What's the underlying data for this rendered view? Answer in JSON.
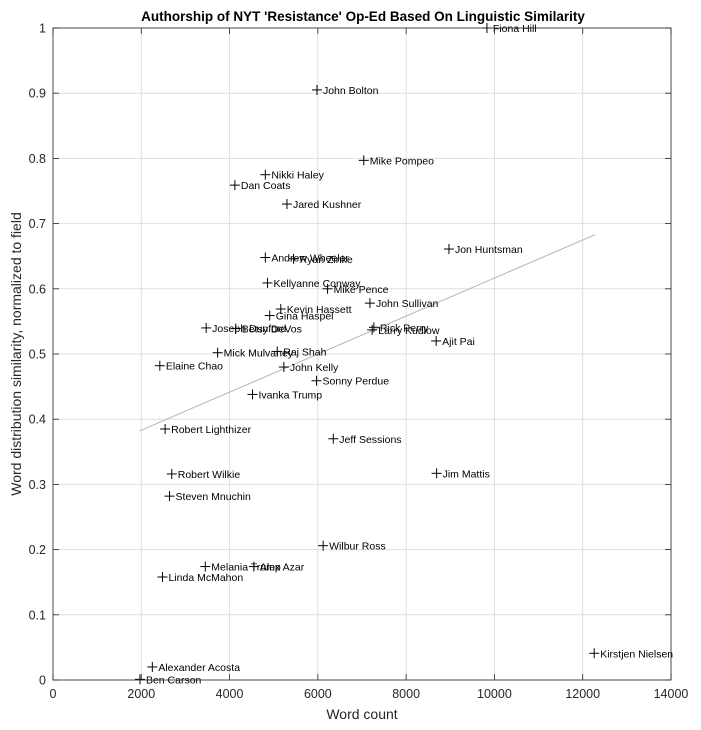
{
  "chart_data": {
    "type": "scatter",
    "title": "Authorship of NYT 'Resistance' Op-Ed Based On Linguistic Similarity",
    "xlabel": "Word count",
    "ylabel": "Word distribution similarity, normalized to field",
    "xlim": [
      0,
      14000
    ],
    "ylim": [
      0,
      1
    ],
    "xticks": [
      0,
      2000,
      4000,
      6000,
      8000,
      10000,
      12000,
      14000
    ],
    "xtick_labels": [
      "0",
      "2000",
      "4000",
      "6000",
      "8000",
      "10000",
      "12000",
      "14000"
    ],
    "yticks": [
      0,
      0.1,
      0.2,
      0.3,
      0.4,
      0.5,
      0.6,
      0.7,
      0.8,
      0.9,
      1
    ],
    "ytick_labels": [
      "0",
      "0.1",
      "0.2",
      "0.3",
      "0.4",
      "0.5",
      "0.6",
      "0.7",
      "0.8",
      "0.9",
      "1"
    ],
    "grid": true,
    "points": [
      {
        "label": "Fiona Hill",
        "x": 9830,
        "y": 1.0
      },
      {
        "label": "John Bolton",
        "x": 5980,
        "y": 0.905
      },
      {
        "label": "Mike Pompeo",
        "x": 7040,
        "y": 0.797
      },
      {
        "label": "Nikki Haley",
        "x": 4810,
        "y": 0.775
      },
      {
        "label": "Dan Coats",
        "x": 4120,
        "y": 0.759
      },
      {
        "label": "Jared Kushner",
        "x": 5300,
        "y": 0.73
      },
      {
        "label": "Jon Huntsman",
        "x": 8970,
        "y": 0.661
      },
      {
        "label": "Andrew Wheeler",
        "x": 4810,
        "y": 0.648
      },
      {
        "label": "Ryan Zinke",
        "x": 5450,
        "y": 0.646
      },
      {
        "label": "Kellyanne Conway",
        "x": 4860,
        "y": 0.609
      },
      {
        "label": "Mike Pence",
        "x": 6220,
        "y": 0.6
      },
      {
        "label": "John Sullivan",
        "x": 7180,
        "y": 0.578
      },
      {
        "label": "Kevin Hassett",
        "x": 5160,
        "y": 0.569
      },
      {
        "label": "Gina Haspel",
        "x": 4910,
        "y": 0.559
      },
      {
        "label": "Joseph Dunford",
        "x": 3470,
        "y": 0.54
      },
      {
        "label": "Betsy DeVos",
        "x": 4140,
        "y": 0.539
      },
      {
        "label": "Rick Perry",
        "x": 7270,
        "y": 0.541
      },
      {
        "label": "Larry Kudlow",
        "x": 7230,
        "y": 0.537
      },
      {
        "label": "Ajit Pai",
        "x": 8680,
        "y": 0.52
      },
      {
        "label": "Raj Shah",
        "x": 5080,
        "y": 0.504
      },
      {
        "label": "Mick Mulvaney",
        "x": 3730,
        "y": 0.502
      },
      {
        "label": "Elaine Chao",
        "x": 2420,
        "y": 0.482
      },
      {
        "label": "John Kelly",
        "x": 5230,
        "y": 0.48
      },
      {
        "label": "Sonny Perdue",
        "x": 5970,
        "y": 0.459
      },
      {
        "label": "Ivanka Trump",
        "x": 4520,
        "y": 0.438
      },
      {
        "label": "Robert Lighthizer",
        "x": 2540,
        "y": 0.385
      },
      {
        "label": "Jeff Sessions",
        "x": 6350,
        "y": 0.37
      },
      {
        "label": "Jim Mattis",
        "x": 8690,
        "y": 0.317
      },
      {
        "label": "Robert Wilkie",
        "x": 2690,
        "y": 0.316
      },
      {
        "label": "Steven Mnuchin",
        "x": 2640,
        "y": 0.282
      },
      {
        "label": "Wilbur Ross",
        "x": 6120,
        "y": 0.206
      },
      {
        "label": "Melania Trump",
        "x": 3450,
        "y": 0.174
      },
      {
        "label": "Alex Azar",
        "x": 4550,
        "y": 0.174
      },
      {
        "label": "Linda McMahon",
        "x": 2480,
        "y": 0.158
      },
      {
        "label": "Kirstjen Nielsen",
        "x": 12260,
        "y": 0.041
      },
      {
        "label": "Alexander Acosta",
        "x": 2250,
        "y": 0.02
      },
      {
        "label": "Ben Carson",
        "x": 1970,
        "y": 0.001
      }
    ],
    "trendline": {
      "x": [
        1960,
        12280
      ],
      "y": [
        0.382,
        0.683
      ]
    }
  }
}
